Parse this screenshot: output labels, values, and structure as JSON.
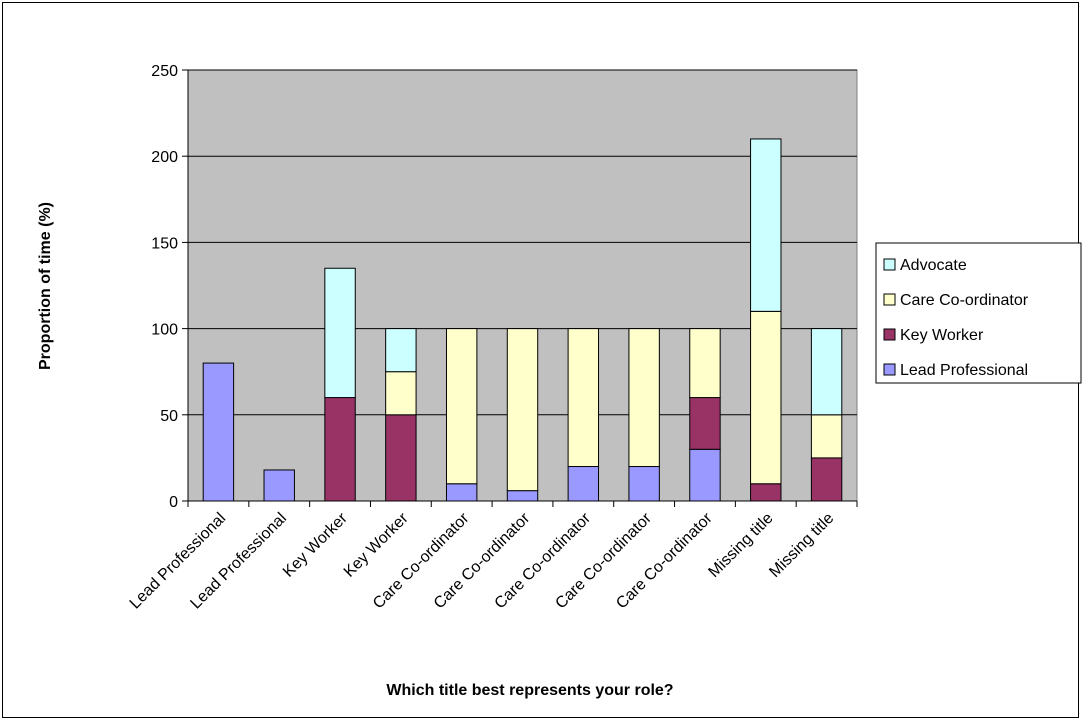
{
  "chart_data": {
    "type": "bar",
    "stacked": true,
    "title": "",
    "xlabel": "Which title best represents your role?",
    "ylabel": "Proportion of time (%)",
    "ylim": [
      0,
      250
    ],
    "yticks": [
      0,
      50,
      100,
      150,
      200,
      250
    ],
    "grid": true,
    "plot_background": "#c0c0c0",
    "legend_position": "right",
    "categories": [
      "Lead Professional",
      "Lead Professional",
      "Key Worker",
      "Key Worker",
      "Care Co-ordinator",
      "Care Co-ordinator",
      "Care Co-ordinator",
      "Care Co-ordinator",
      "Care Co-ordinator",
      "Missing title",
      "Missing title"
    ],
    "series": [
      {
        "name": "Lead Professional",
        "color": "#9999ff",
        "values": [
          80,
          18,
          0,
          0,
          10,
          6,
          20,
          20,
          30,
          0,
          0
        ]
      },
      {
        "name": "Key Worker",
        "color": "#993366",
        "values": [
          0,
          0,
          60,
          50,
          0,
          0,
          0,
          0,
          30,
          10,
          25
        ]
      },
      {
        "name": "Care Co-ordinator",
        "color": "#ffffcc",
        "values": [
          0,
          0,
          0,
          25,
          90,
          94,
          80,
          80,
          40,
          100,
          25
        ]
      },
      {
        "name": "Advocate",
        "color": "#ccffff",
        "values": [
          0,
          0,
          75,
          25,
          0,
          0,
          0,
          0,
          0,
          100,
          50
        ]
      }
    ],
    "legend_order": [
      "Advocate",
      "Care Co-ordinator",
      "Key Worker",
      "Lead Professional"
    ]
  }
}
